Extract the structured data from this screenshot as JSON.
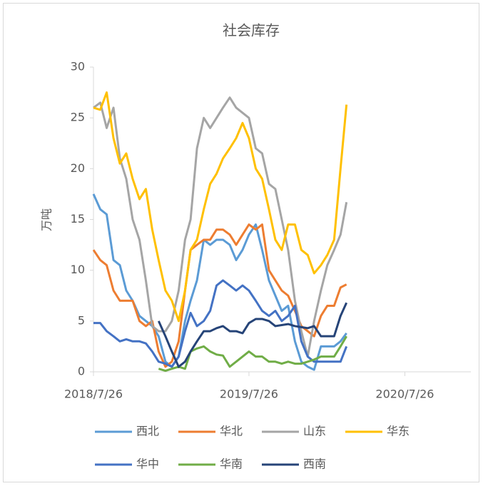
{
  "chart_data": {
    "type": "line",
    "title": "社会库存",
    "y_label": "万吨",
    "x": [
      "2018/7/26",
      "2018/8/11",
      "2018/8/26",
      "2018/9/11",
      "2018/9/26",
      "2018/10/11",
      "2018/10/26",
      "2018/11/11",
      "2018/11/26",
      "2018/12/11",
      "2018/12/26",
      "2019/1/11",
      "2019/1/26",
      "2019/2/11",
      "2019/2/26",
      "2019/3/11",
      "2019/3/26",
      "2019/4/11",
      "2019/4/26",
      "2019/5/11",
      "2019/5/26",
      "2019/6/11",
      "2019/6/26",
      "2019/7/11",
      "2019/7/26",
      "2019/8/11",
      "2019/8/26",
      "2019/9/11",
      "2019/9/26",
      "2019/10/11",
      "2019/10/26",
      "2019/11/11",
      "2019/11/26",
      "2019/12/11",
      "2019/12/26",
      "2020/1/11",
      "2020/1/26",
      "2020/2/11",
      "2020/2/26",
      "2020/3/11"
    ],
    "series": [
      {
        "name": "西北",
        "color": "#5b9bd5",
        "values": [
          17.5,
          16,
          15.5,
          11,
          10.5,
          8,
          7,
          5.5,
          5,
          4.5,
          3.5,
          1,
          0.5,
          1.5,
          5,
          7,
          9,
          13,
          12.5,
          13,
          13,
          12.5,
          11,
          12,
          13.5,
          14.5,
          12,
          9,
          7.5,
          6,
          6.5,
          3,
          1,
          0.5,
          0.2,
          2.5,
          2.5,
          2.5,
          3,
          3.8
        ]
      },
      {
        "name": "华北",
        "color": "#ed7d31",
        "values": [
          12,
          11,
          10.5,
          8,
          7,
          7,
          7,
          5,
          4.5,
          5,
          2,
          0.5,
          1,
          3,
          8,
          12,
          12.5,
          13,
          13,
          14,
          14,
          13.5,
          12.5,
          13.5,
          14.5,
          14,
          14.5,
          10,
          9,
          8,
          7.5,
          6,
          4.5,
          4,
          3.5,
          5.5,
          6.5,
          6.5,
          8.3,
          8.6
        ]
      },
      {
        "name": "山东",
        "color": "#a5a5a5",
        "values": [
          26,
          26.5,
          24,
          26,
          21,
          19,
          15,
          13,
          9,
          4.5,
          4,
          4,
          5,
          8,
          13,
          15,
          22,
          25,
          24,
          25,
          26,
          27,
          26,
          25.5,
          25,
          22,
          21.5,
          18.5,
          18,
          15,
          12,
          7,
          4,
          1.5,
          5,
          8,
          10.5,
          12,
          13.5,
          16.7
        ]
      },
      {
        "name": "华东",
        "color": "#ffc000",
        "values": [
          26,
          25.8,
          27.5,
          23,
          20.5,
          21.5,
          19,
          17,
          18,
          14,
          11,
          8,
          7,
          5,
          8,
          12,
          13,
          16,
          18.5,
          19.5,
          21,
          22,
          23,
          24.5,
          23,
          20,
          19,
          16,
          13,
          12,
          14.5,
          14.5,
          12,
          11.5,
          9.7,
          10.5,
          11.5,
          13,
          20,
          26.3
        ]
      },
      {
        "name": "华中",
        "color": "#4472c4",
        "values": [
          4.8,
          4.8,
          4,
          3.5,
          3,
          3.2,
          3,
          3,
          2.8,
          2,
          1,
          0.8,
          0.5,
          1.5,
          4,
          5.8,
          4.5,
          5,
          6,
          8.5,
          9,
          8.5,
          8,
          8.5,
          8,
          7,
          6,
          5.5,
          6,
          5,
          5.5,
          6.5,
          3,
          1.5,
          1,
          1,
          1,
          1,
          1,
          2.5
        ]
      },
      {
        "name": "华南",
        "color": "#70ad47",
        "values": [
          null,
          null,
          null,
          null,
          null,
          null,
          null,
          null,
          null,
          null,
          0.3,
          0.1,
          0.3,
          0.5,
          0.3,
          2,
          2.3,
          2.5,
          2,
          1.7,
          1.6,
          0.5,
          1,
          1.5,
          2,
          1.5,
          1.5,
          1,
          1,
          0.8,
          1,
          0.8,
          0.8,
          1,
          1.2,
          1.5,
          1.5,
          1.5,
          2.5,
          3.5
        ]
      },
      {
        "name": "西南",
        "color": "#264478",
        "values": [
          null,
          null,
          null,
          null,
          null,
          null,
          null,
          null,
          null,
          null,
          5,
          3.5,
          2,
          0.5,
          1,
          2,
          3,
          4,
          4,
          4.3,
          4.5,
          4,
          4,
          3.8,
          4.8,
          5.2,
          5.2,
          5,
          4.5,
          4.6,
          4.7,
          4.5,
          4.4,
          4.3,
          4.5,
          3.5,
          3.5,
          3.5,
          5.5,
          6.8
        ]
      }
    ],
    "xlim": [
      "2018/7/26",
      "2020/12/28"
    ],
    "xticks": [
      "2018/7/26",
      "2019/7/26",
      "2020/7/26"
    ],
    "ylim": [
      0,
      30
    ],
    "yticks": [
      0,
      5,
      10,
      15,
      20,
      25,
      30
    ],
    "legend": "bottom"
  }
}
